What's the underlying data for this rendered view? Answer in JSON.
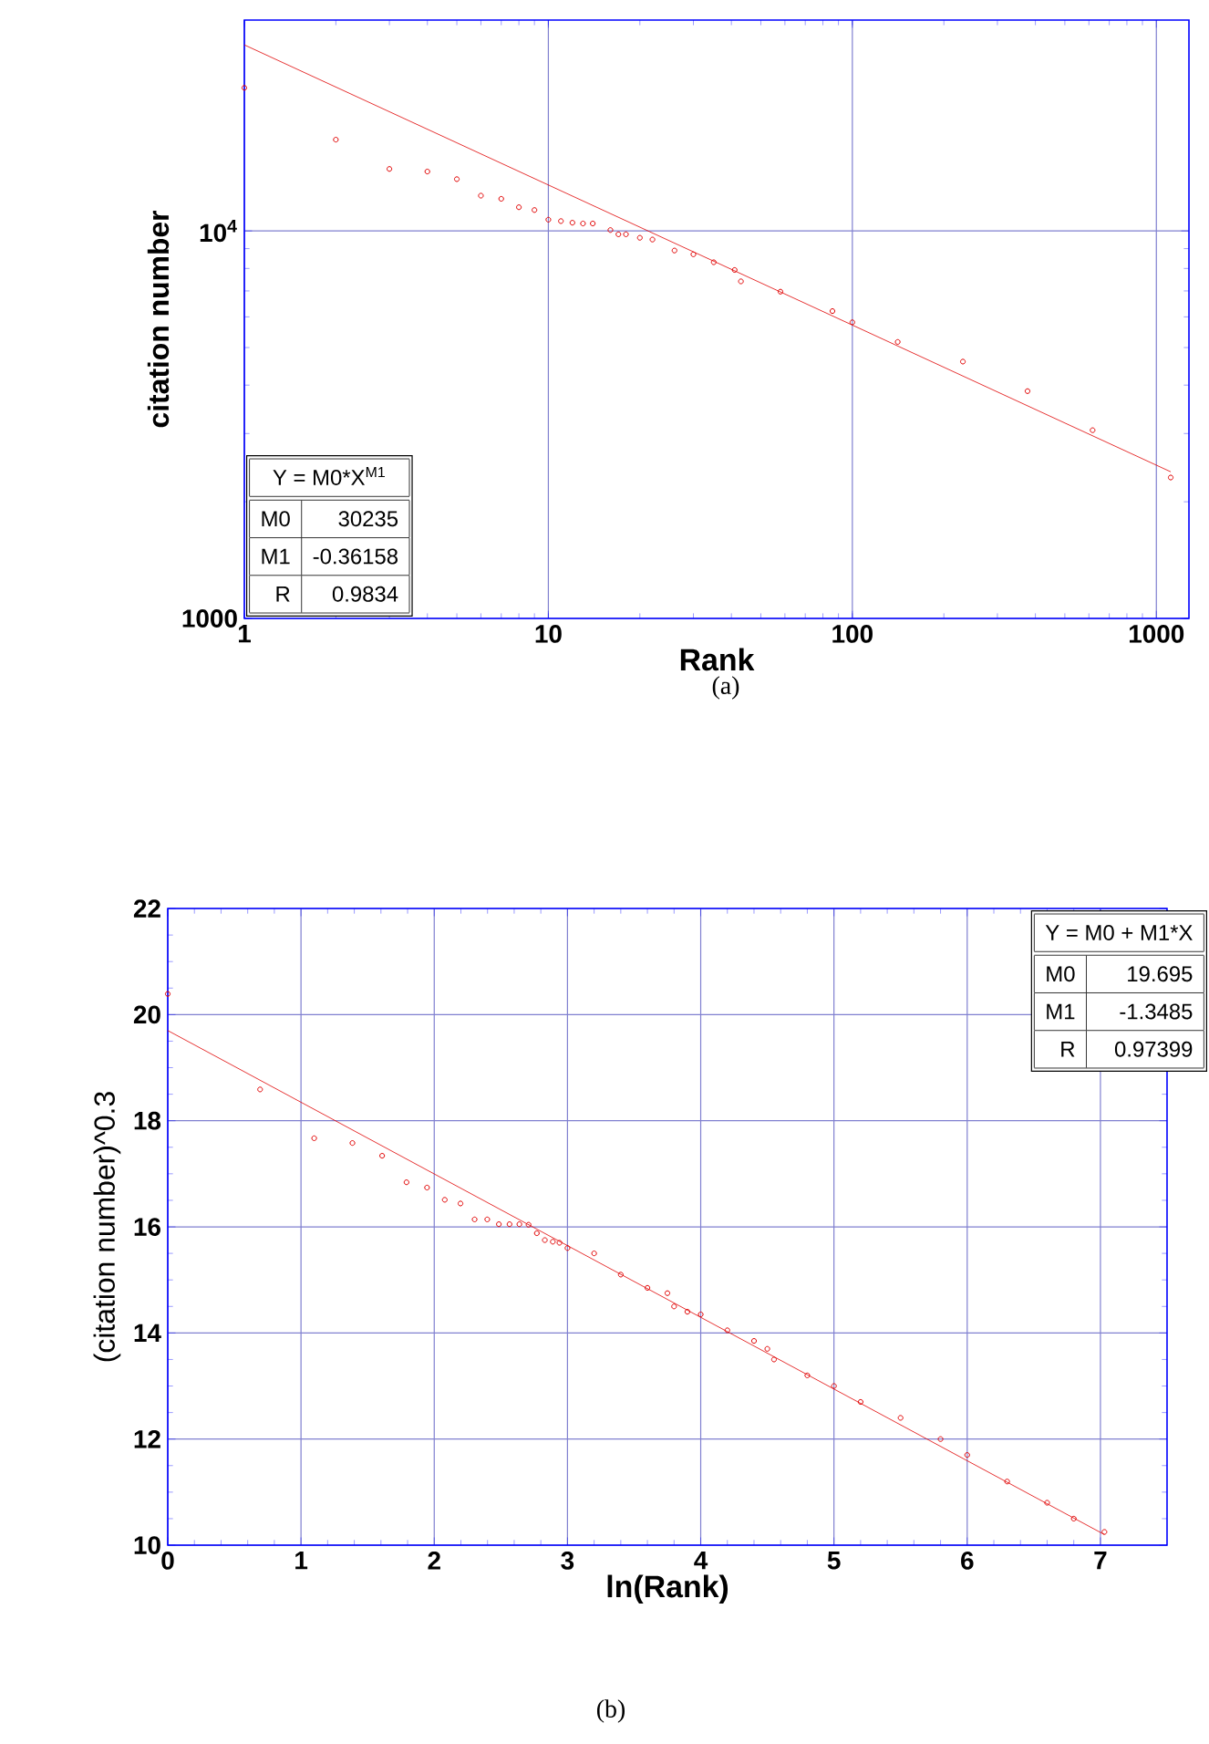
{
  "chart_data": [
    {
      "type": "scatter",
      "xlabel": "Rank",
      "ylabel": "citation number",
      "log": "xy",
      "xlim": [
        1,
        1280
      ],
      "ylim": [
        1000,
        35000
      ],
      "xticks": [
        1,
        10,
        100,
        1000
      ],
      "yticks": [
        1000,
        {
          "value": 10000,
          "label": "10$^{4}$"
        }
      ],
      "grid": true,
      "series": [
        {
          "marker": "circle",
          "color": "#e00000",
          "x": [
            1,
            2,
            3,
            4,
            5,
            6,
            7,
            8,
            9,
            10,
            11,
            12,
            13,
            14,
            16,
            17,
            18,
            20,
            22,
            26,
            30,
            35,
            41,
            43,
            58,
            86,
            100,
            141,
            231,
            377,
            617,
            1115
          ],
          "values": [
            23400,
            17200,
            14450,
            14230,
            13600,
            12330,
            12100,
            11510,
            11320,
            10690,
            10600,
            10500,
            10450,
            10450,
            10050,
            9800,
            9800,
            9600,
            9500,
            8900,
            8700,
            8300,
            7930,
            7410,
            6970,
            6210,
            5810,
            5170,
            4600,
            3860,
            3060,
            2310
          ]
        },
        {
          "type": "line",
          "color": "#e00000",
          "x": [
            1,
            1115
          ],
          "values": [
            30200,
            2390
          ]
        }
      ],
      "annotations": [
        "Y = M0*X$^{M1}$",
        "M0",
        "30235",
        "M1",
        "-0.36158",
        "R",
        "0.9834",
        "(a)"
      ]
    },
    {
      "type": "scatter",
      "xlabel": "ln(Rank)",
      "ylabel": "(citation number)^0.3",
      "xlim": [
        0,
        7.5
      ],
      "ylim": [
        10,
        22
      ],
      "xticks": [
        0,
        1,
        2,
        3,
        4,
        5,
        6,
        7
      ],
      "yticks": [
        10,
        12,
        14,
        16,
        18,
        20,
        22
      ],
      "grid": true,
      "series": [
        {
          "marker": "circle",
          "color": "#e00000",
          "x": [
            0,
            0.693,
            1.099,
            1.386,
            1.609,
            1.792,
            1.946,
            2.079,
            2.197,
            2.303,
            2.398,
            2.485,
            2.565,
            2.639,
            2.708,
            2.77,
            2.83,
            2.89,
            2.94,
            3.0,
            3.2,
            3.4,
            3.6,
            3.75,
            3.8,
            3.9,
            4.0,
            4.2,
            4.4,
            4.5,
            4.55,
            4.8,
            5.0,
            5.2,
            5.5,
            5.8,
            6.0,
            6.3,
            6.6,
            6.8,
            7.03
          ],
          "values": [
            20.39,
            18.59,
            17.67,
            17.58,
            17.34,
            16.84,
            16.74,
            16.51,
            16.44,
            16.14,
            16.14,
            16.05,
            16.05,
            16.05,
            16.04,
            15.88,
            15.75,
            15.72,
            15.7,
            15.6,
            15.5,
            15.1,
            14.85,
            14.75,
            14.5,
            14.4,
            14.35,
            14.05,
            13.85,
            13.7,
            13.5,
            13.2,
            13.0,
            12.7,
            12.4,
            12.0,
            11.7,
            11.2,
            10.8,
            10.5,
            10.25
          ]
        },
        {
          "type": "line",
          "color": "#e00000",
          "x": [
            0,
            7.03
          ],
          "values": [
            19.7,
            10.2
          ]
        }
      ],
      "annotations": [
        "Y = M0 + M1*X",
        "M0",
        "19.695",
        "M1",
        "-1.3485",
        "R",
        "0.97399",
        "(b)"
      ]
    }
  ]
}
